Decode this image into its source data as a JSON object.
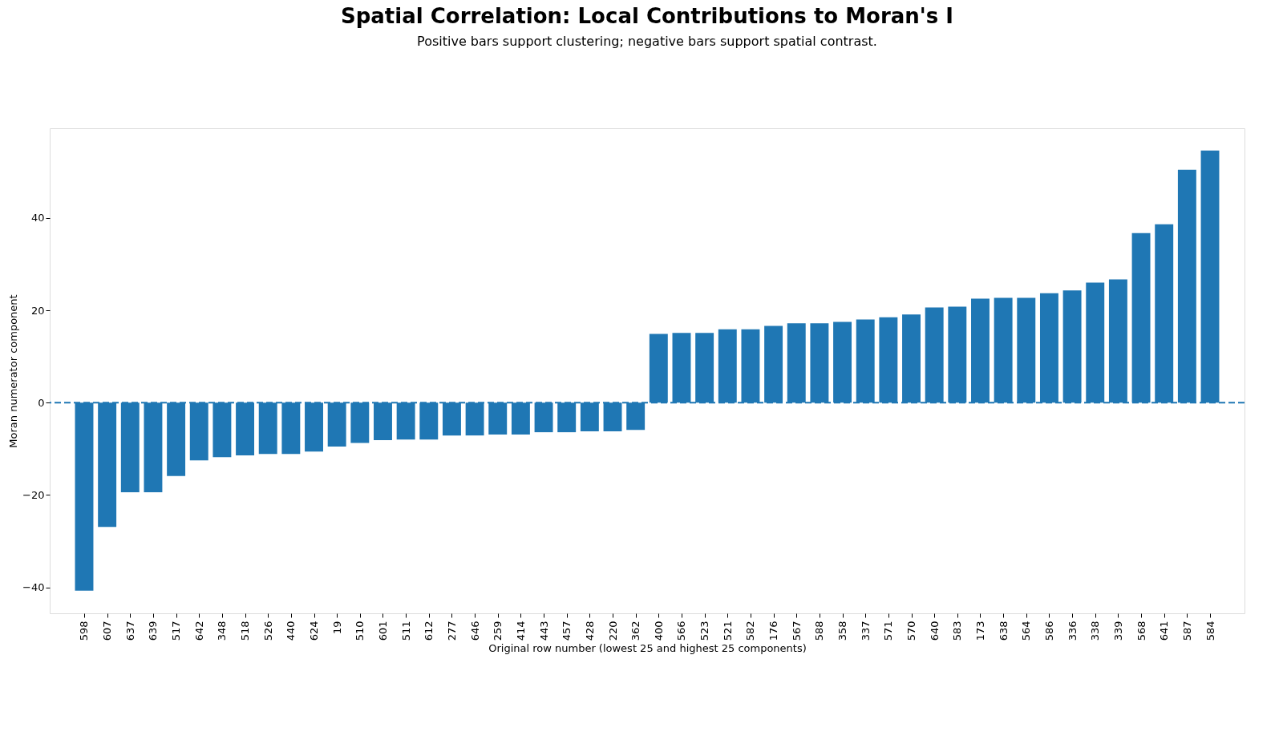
{
  "chart_data": {
    "type": "bar",
    "title": "Spatial Correlation: Local Contributions to Moran's I",
    "subtitle": "Positive bars support clustering; negative bars support spatial contrast.",
    "xlabel": "Original row number (lowest 25 and highest 25 components)",
    "ylabel": "Moran numerator component",
    "categories": [
      "598",
      "607",
      "637",
      "639",
      "517",
      "642",
      "348",
      "518",
      "526",
      "440",
      "624",
      "19",
      "510",
      "601",
      "511",
      "612",
      "277",
      "646",
      "259",
      "414",
      "443",
      "457",
      "428",
      "220",
      "362",
      "400",
      "566",
      "523",
      "521",
      "582",
      "176",
      "567",
      "588",
      "358",
      "337",
      "571",
      "570",
      "640",
      "583",
      "173",
      "638",
      "564",
      "586",
      "336",
      "338",
      "339",
      "568",
      "641",
      "587",
      "584"
    ],
    "values": [
      -40.7,
      -26.9,
      -19.4,
      -19.4,
      -15.9,
      -12.5,
      -11.8,
      -11.4,
      -11.1,
      -11.1,
      -10.6,
      -9.5,
      -8.7,
      -8.1,
      -8.0,
      -8.0,
      -7.1,
      -7.1,
      -6.9,
      -6.9,
      -6.4,
      -6.4,
      -6.2,
      -6.2,
      -5.9,
      14.9,
      15.1,
      15.1,
      15.9,
      15.9,
      16.6,
      17.2,
      17.2,
      17.5,
      18.0,
      18.5,
      19.1,
      20.6,
      20.8,
      22.5,
      22.7,
      22.7,
      23.7,
      24.3,
      26.0,
      26.7,
      36.7,
      38.6,
      50.4,
      54.6
    ],
    "color": "#1f77b4",
    "ylim": [
      -45.6,
      59.4
    ],
    "yticks": [
      -40,
      -20,
      0,
      20,
      40
    ],
    "ref_lines": [
      {
        "axis": "y",
        "value": 0,
        "color": "#1f77b4",
        "line_style": "dashed"
      }
    ],
    "grid": false
  }
}
